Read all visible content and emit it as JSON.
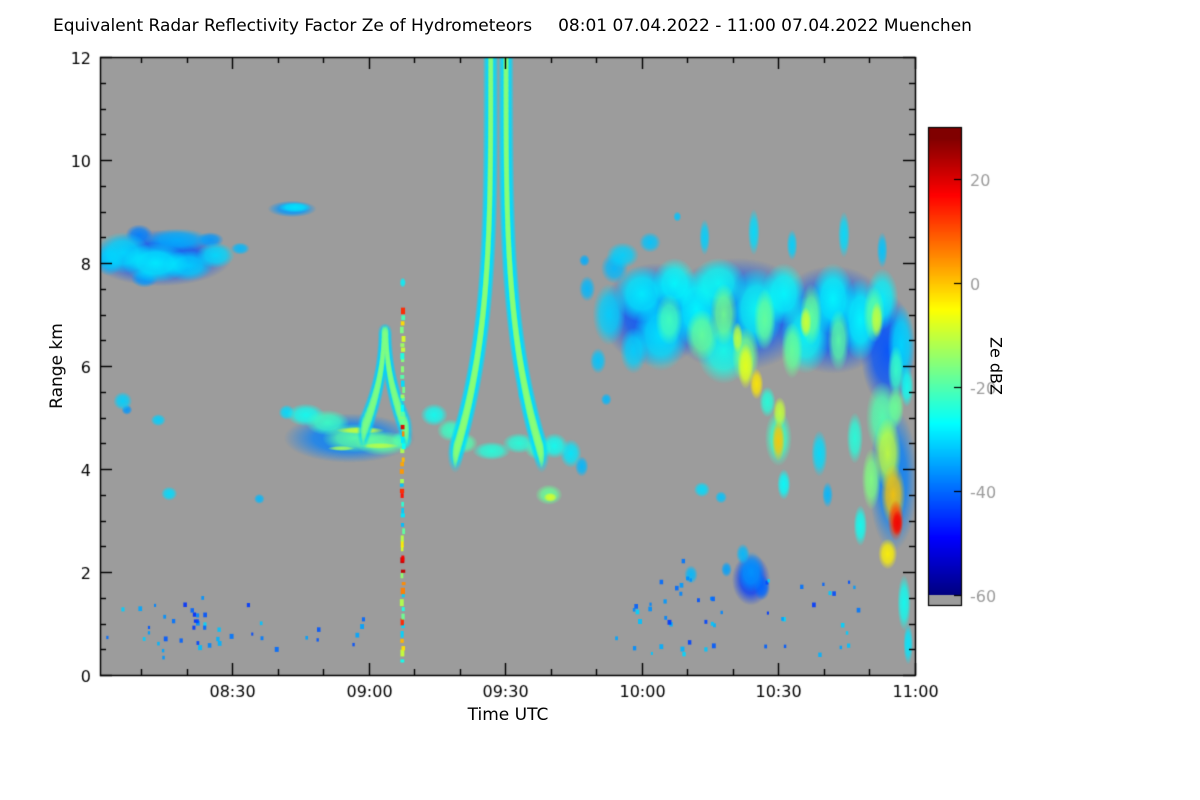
{
  "header": {
    "title": "Equivalent Radar Reflectivity Factor Ze of Hydrometeors",
    "period_location": "08:01 07.04.2022 - 11:00 07.04.2022 Muenchen"
  },
  "chart_data": {
    "type": "heatmap",
    "title": "Equivalent Radar Reflectivity Factor Ze of Hydrometeors 08:01 07.04.2022 - 11:00 07.04.2022 Muenchen",
    "xlabel": "Time UTC",
    "ylabel": "Range km",
    "x_range_hours": [
      8.0167,
      11.0
    ],
    "y_range_km": [
      0,
      12
    ],
    "x_ticks": [
      {
        "hour": 8.5,
        "label": "08:30"
      },
      {
        "hour": 9.0,
        "label": "09:00"
      },
      {
        "hour": 9.5,
        "label": "09:30"
      },
      {
        "hour": 10.0,
        "label": "10:00"
      },
      {
        "hour": 10.5,
        "label": "10:30"
      },
      {
        "hour": 11.0,
        "label": "11:00"
      }
    ],
    "y_ticks": [
      {
        "km": 0,
        "label": "0"
      },
      {
        "km": 2,
        "label": "2"
      },
      {
        "km": 4,
        "label": "4"
      },
      {
        "km": 6,
        "label": "6"
      },
      {
        "km": 8,
        "label": "8"
      },
      {
        "km": 10,
        "label": "10"
      },
      {
        "km": 12,
        "label": "12"
      }
    ],
    "x_minor_step_hours": 0.1666667,
    "y_minor_step_km": 0.5,
    "colorbar": {
      "label": "Ze dBZ",
      "min_dbz": -62,
      "max_dbz": 30,
      "gray_below_dbz": -60,
      "ticks": [
        {
          "dbz": 20,
          "label": "20"
        },
        {
          "dbz": 0,
          "label": "0"
        },
        {
          "dbz": -20,
          "label": "-20"
        },
        {
          "dbz": -40,
          "label": "-40"
        },
        {
          "dbz": -60,
          "label": "-60"
        }
      ]
    },
    "colors": {
      "plot_background": "#9c9c9c",
      "frame": "#000000",
      "page_background": "#ffffff"
    },
    "seed": 20220407,
    "blob_format": [
      "t_hour",
      "h_km",
      "rt_hour",
      "rh_km",
      "dbz"
    ],
    "blobs": [
      [
        8.24,
        8.1,
        0.26,
        0.55,
        -42
      ],
      [
        8.1,
        8.2,
        0.1,
        0.4,
        -30
      ],
      [
        8.05,
        8.05,
        0.05,
        0.3,
        -33
      ],
      [
        8.22,
        8.0,
        0.12,
        0.38,
        -28
      ],
      [
        8.34,
        7.95,
        0.09,
        0.3,
        -31
      ],
      [
        8.3,
        8.45,
        0.12,
        0.22,
        -34
      ],
      [
        8.44,
        8.15,
        0.07,
        0.25,
        -30
      ],
      [
        8.42,
        8.45,
        0.05,
        0.15,
        -36
      ],
      [
        8.53,
        8.28,
        0.035,
        0.12,
        -33
      ],
      [
        8.16,
        8.55,
        0.05,
        0.2,
        -38
      ],
      [
        8.18,
        7.7,
        0.05,
        0.18,
        -36
      ],
      [
        8.72,
        9.05,
        0.09,
        0.16,
        -36
      ],
      [
        8.73,
        9.08,
        0.06,
        0.1,
        -29
      ],
      [
        8.1,
        5.32,
        0.035,
        0.18,
        -31
      ],
      [
        8.115,
        5.15,
        0.02,
        0.1,
        -36
      ],
      [
        8.23,
        4.95,
        0.028,
        0.12,
        -31
      ],
      [
        8.27,
        3.52,
        0.03,
        0.14,
        -30
      ],
      [
        8.6,
        3.42,
        0.02,
        0.1,
        -33
      ],
      [
        8.93,
        4.6,
        0.24,
        0.48,
        -38
      ],
      [
        8.7,
        5.1,
        0.03,
        0.15,
        -30
      ],
      [
        8.77,
        5.05,
        0.07,
        0.22,
        -26
      ],
      [
        8.85,
        4.9,
        0.08,
        0.25,
        -22
      ],
      [
        8.95,
        4.6,
        0.12,
        0.28,
        -19
      ],
      [
        9.05,
        4.5,
        0.1,
        0.24,
        -18
      ],
      [
        8.97,
        4.75,
        0.09,
        0.07,
        -9
      ],
      [
        9.04,
        4.45,
        0.07,
        0.06,
        -11
      ],
      [
        8.9,
        4.4,
        0.05,
        0.05,
        -13
      ],
      [
        9.12,
        4.55,
        0.04,
        0.18,
        -24
      ],
      [
        9.24,
        5.05,
        0.05,
        0.22,
        -26
      ],
      [
        9.3,
        4.75,
        0.05,
        0.22,
        -22
      ],
      [
        9.35,
        4.5,
        0.05,
        0.2,
        -20
      ],
      [
        9.45,
        4.35,
        0.07,
        0.18,
        -24
      ],
      [
        9.55,
        4.5,
        0.06,
        0.2,
        -24
      ],
      [
        9.62,
        4.4,
        0.05,
        0.22,
        -22
      ],
      [
        9.68,
        4.45,
        0.05,
        0.25,
        -26
      ],
      [
        9.74,
        4.3,
        0.04,
        0.28,
        -29
      ],
      [
        9.66,
        3.5,
        0.05,
        0.2,
        -18
      ],
      [
        9.665,
        3.45,
        0.025,
        0.09,
        -8
      ],
      [
        9.57,
        5.45,
        0.025,
        0.15,
        -31
      ],
      [
        9.78,
        4.05,
        0.025,
        0.2,
        -33
      ],
      [
        10.05,
        7.0,
        0.2,
        1.0,
        -42
      ],
      [
        10.35,
        7.0,
        0.28,
        1.1,
        -42
      ],
      [
        10.7,
        6.9,
        0.22,
        1.05,
        -42
      ],
      [
        10.9,
        6.3,
        0.1,
        1.1,
        -42
      ],
      [
        10.92,
        3.8,
        0.09,
        1.4,
        -38
      ],
      [
        10.4,
        1.85,
        0.07,
        0.5,
        -44
      ],
      [
        9.88,
        7.0,
        0.06,
        0.6,
        -31
      ],
      [
        9.9,
        7.9,
        0.05,
        0.3,
        -33
      ],
      [
        9.97,
        6.3,
        0.05,
        0.45,
        -31
      ],
      [
        10.0,
        7.4,
        0.1,
        0.55,
        -28
      ],
      [
        10.07,
        6.6,
        0.1,
        0.7,
        -29
      ],
      [
        10.12,
        7.6,
        0.08,
        0.5,
        -27
      ],
      [
        10.2,
        7.1,
        0.09,
        0.75,
        -27
      ],
      [
        10.28,
        7.6,
        0.1,
        0.5,
        -26
      ],
      [
        10.3,
        6.3,
        0.1,
        0.65,
        -25
      ],
      [
        10.42,
        7.1,
        0.1,
        0.8,
        -26
      ],
      [
        10.52,
        7.4,
        0.08,
        0.6,
        -27
      ],
      [
        10.6,
        6.6,
        0.09,
        0.75,
        -26
      ],
      [
        10.7,
        7.3,
        0.08,
        0.7,
        -27
      ],
      [
        10.8,
        6.9,
        0.07,
        0.8,
        -27
      ],
      [
        10.88,
        7.3,
        0.06,
        0.6,
        -28
      ],
      [
        10.95,
        6.4,
        0.05,
        0.8,
        -30
      ],
      [
        9.93,
        8.15,
        0.06,
        0.25,
        -31
      ],
      [
        10.03,
        8.4,
        0.04,
        0.2,
        -32
      ],
      [
        10.23,
        8.5,
        0.02,
        0.35,
        -31
      ],
      [
        10.41,
        8.6,
        0.022,
        0.45,
        -30
      ],
      [
        10.55,
        8.35,
        0.02,
        0.3,
        -31
      ],
      [
        10.74,
        8.55,
        0.022,
        0.45,
        -30
      ],
      [
        10.88,
        8.25,
        0.02,
        0.35,
        -32
      ],
      [
        10.22,
        6.6,
        0.06,
        0.5,
        -18
      ],
      [
        10.3,
        7.0,
        0.05,
        0.6,
        -17
      ],
      [
        10.38,
        6.2,
        0.05,
        0.55,
        -16
      ],
      [
        10.45,
        6.9,
        0.04,
        0.6,
        -18
      ],
      [
        10.55,
        6.3,
        0.04,
        0.55,
        -18
      ],
      [
        10.62,
        7.0,
        0.04,
        0.6,
        -18
      ],
      [
        10.72,
        6.5,
        0.04,
        0.6,
        -19
      ],
      [
        10.85,
        7.0,
        0.04,
        0.55,
        -19
      ],
      [
        10.1,
        6.9,
        0.05,
        0.5,
        -21
      ],
      [
        10.93,
        5.9,
        0.03,
        0.5,
        -22
      ],
      [
        10.38,
        6.0,
        0.03,
        0.45,
        -7
      ],
      [
        10.42,
        5.65,
        0.025,
        0.3,
        -3
      ],
      [
        10.6,
        6.85,
        0.022,
        0.3,
        -9
      ],
      [
        10.86,
        6.9,
        0.022,
        0.35,
        -10
      ],
      [
        10.35,
        6.55,
        0.02,
        0.3,
        -10
      ],
      [
        10.5,
        4.6,
        0.05,
        0.55,
        -22
      ],
      [
        10.5,
        4.55,
        0.024,
        0.4,
        0
      ],
      [
        10.505,
        5.1,
        0.025,
        0.3,
        -10
      ],
      [
        10.52,
        3.7,
        0.025,
        0.3,
        -27
      ],
      [
        10.46,
        5.3,
        0.03,
        0.3,
        -24
      ],
      [
        10.4,
        2.0,
        0.05,
        0.4,
        -36
      ],
      [
        10.44,
        1.7,
        0.03,
        0.25,
        -40
      ],
      [
        10.37,
        2.35,
        0.025,
        0.2,
        -33
      ],
      [
        10.31,
        2.05,
        0.02,
        0.15,
        -35
      ],
      [
        10.22,
        3.6,
        0.03,
        0.15,
        -30
      ],
      [
        10.29,
        3.45,
        0.022,
        0.12,
        -32
      ],
      [
        10.18,
        1.95,
        0.025,
        0.18,
        -33
      ],
      [
        10.65,
        4.3,
        0.03,
        0.45,
        -30
      ],
      [
        10.68,
        3.5,
        0.02,
        0.25,
        -33
      ],
      [
        10.88,
        5.0,
        0.06,
        0.7,
        -20
      ],
      [
        10.9,
        4.3,
        0.05,
        0.7,
        -10
      ],
      [
        10.92,
        3.5,
        0.045,
        0.6,
        0
      ],
      [
        10.93,
        3.0,
        0.03,
        0.4,
        12
      ],
      [
        10.935,
        2.95,
        0.02,
        0.25,
        18
      ],
      [
        10.9,
        2.35,
        0.035,
        0.3,
        -4
      ],
      [
        10.84,
        3.8,
        0.035,
        0.6,
        -16
      ],
      [
        10.8,
        2.9,
        0.025,
        0.4,
        -26
      ],
      [
        10.78,
        4.6,
        0.03,
        0.5,
        -24
      ],
      [
        10.96,
        1.4,
        0.025,
        0.55,
        -26
      ],
      [
        10.975,
        0.6,
        0.018,
        0.4,
        -29
      ],
      [
        10.97,
        5.6,
        0.025,
        0.4,
        -26
      ],
      [
        10.93,
        5.2,
        0.03,
        0.4,
        -18
      ],
      [
        9.8,
        7.5,
        0.03,
        0.25,
        -33
      ],
      [
        9.84,
        6.1,
        0.03,
        0.25,
        -32
      ],
      [
        9.87,
        5.35,
        0.02,
        0.12,
        -33
      ],
      [
        9.79,
        8.05,
        0.02,
        0.12,
        -34
      ],
      [
        10.13,
        8.9,
        0.015,
        0.1,
        -32
      ],
      [
        9.125,
        7.62,
        0.012,
        0.1,
        -28
      ]
    ],
    "plumes": [
      {
        "t_apex": 9.475,
        "h_base": 4.3,
        "h_top": 12.0,
        "base_spread_hours": 0.028,
        "spread_hours": 0.13,
        "exponent": 3.5,
        "overshoot_km": 0.4,
        "core_dbz": -15,
        "fringe_dbz": -30,
        "core_rt_hours": 0.012,
        "fringe_rt_hours": 0.03,
        "step_km": 0.1
      },
      {
        "t_apex": 9.06,
        "h_base": 4.75,
        "h_top": 6.65,
        "base_spread_hours": 0.004,
        "spread_hours": 0.075,
        "exponent": 2.0,
        "overshoot_km": 0.0,
        "core_dbz": -16,
        "fringe_dbz": -31,
        "core_rt_hours": 0.011,
        "fringe_rt_hours": 0.024,
        "step_km": 0.1
      }
    ],
    "speckle_columns": [
      {
        "t_hour": 9.125,
        "h0_km": 0.25,
        "h1_km": 7.15,
        "count": 55
      }
    ],
    "speckle_regions": [
      {
        "t0": 8.04,
        "t1": 8.62,
        "h0": 0.3,
        "h1": 1.55,
        "count": 30,
        "dbz0": -45,
        "dbz1": -30
      },
      {
        "t0": 8.3,
        "t1": 8.4,
        "h0": 1.05,
        "h1": 1.6,
        "count": 7,
        "dbz0": -46,
        "dbz1": -36
      },
      {
        "t0": 8.64,
        "t1": 9.0,
        "h0": 0.5,
        "h1": 1.2,
        "count": 8,
        "dbz0": -45,
        "dbz1": -34
      },
      {
        "t0": 9.9,
        "t1": 10.32,
        "h0": 0.35,
        "h1": 1.5,
        "count": 26,
        "dbz0": -44,
        "dbz1": -30
      },
      {
        "t0": 10.45,
        "t1": 10.8,
        "h0": 0.4,
        "h1": 1.9,
        "count": 20,
        "dbz0": -44,
        "dbz1": -30
      },
      {
        "t0": 10.05,
        "t1": 10.18,
        "h0": 1.5,
        "h1": 2.3,
        "count": 8,
        "dbz0": -40,
        "dbz1": -32
      }
    ]
  }
}
